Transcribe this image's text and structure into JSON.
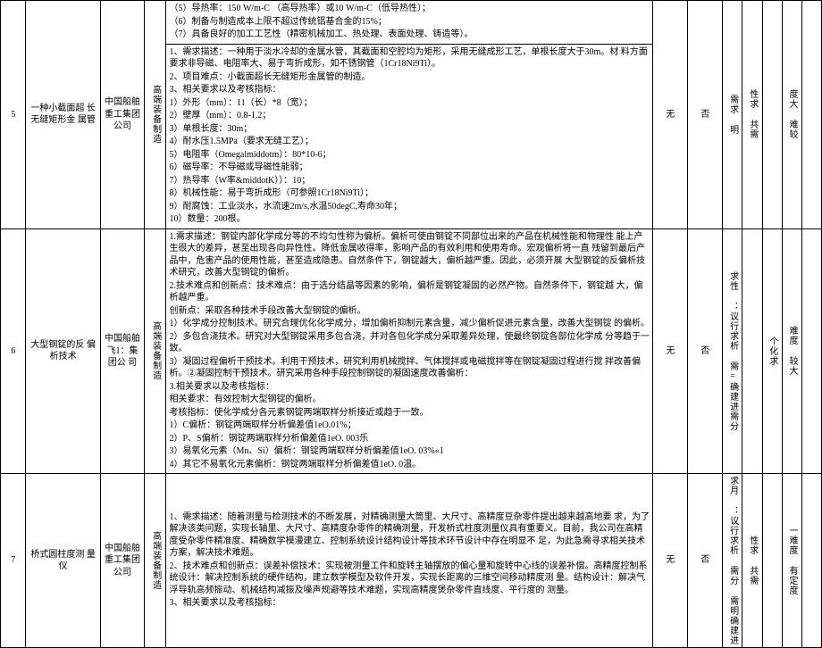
{
  "rows": [
    {
      "num": "5",
      "title": "一种小截面超 长无缝矩形金 属管",
      "org": "中国船舶重工集团公司",
      "cat": "高端装备制造",
      "flag1": "无",
      "flag2": "否",
      "n1": "需求 明",
      "n2": "性求 共需",
      "n3": "",
      "n4": "度大 难较",
      "n5": "",
      "detail_top": [
        "（5）导热率：150 W/m-C （高导热率）或10 W/m-C（低导热性）；",
        "（6）制备与制造成本上限不超过传统铝基合金的15%；",
        "（7）具备良好的加工工艺性（精密机械加工、热处理、表面处理、铸造等）。"
      ],
      "detail": [
        "1、需求描述：一种用于淡水冷却的金属水管，其截面和空腔均为矩形，采用无缝成形工艺，单根长度大于30m。材 料方面要求非导磁、电阻率大、易于弯折成形，如不锈钢管（1Cr18Ni9Ti）。",
        "2、项目难点：小截面超长无缝矩形金属管的制造。",
        "3、相关要求以及考核指标：",
        "1）外形（mm）：11（长）*8（宽）；",
        "2）壁厚（mm）：0.8-1.2；",
        "3）单根长度：30m；",
        "4）耐水压1.5MPa（要求无缝工艺）；",
        "5）电阻率（Omegalmiddotm）：80*10-6；",
        "6）磁导率：不导磁或导磁性能弱；",
        "7）热导率（W率&middotK））：10；",
        "8）机械性能：易于弯折成形（可参照1Cr18Ni9Ti）；",
        "9）耐腐蚀：工业淡水，水流速2m/s,水温50degC,寿命30年；",
        "10）数量：200根。"
      ]
    },
    {
      "num": "6",
      "title": "大型钢锭的反 偏析技术",
      "org": "中国船舶 飞1：集团公 司",
      "cat": "高端装备制造",
      "flag1": "无",
      "flag2": "否",
      "n1": "求性 ：议行求析 需=确建进需分",
      "n2": "",
      "n3": "个化求",
      "n4": "难度 较大",
      "n5": "",
      "detail": [
        "1.需求描述：钢锭内部化学成分等的不均匀性称为偏析。偏析可使由钢锭不同部位出来的产品在机械性能和物理性 能上产生很大的差异，甚至出现各向异性性。降低金属收得率，影响产品的有效利用和使用寿命。宏观偏析将一直 残留到最后产品中，危害产品的使用性能，甚至造成隐患。自然条件下，钢锭越大，偏析越严重。因此，必须开展 大型钢锭的反偏析技术研究，改善大型钢锭的偏析。",
        "2.技术难点和创新点：技术难点：由于选分结晶等因素的影响，偏析是钢锭凝固的必然产物。自然条件下，钢锭越 大，偏析越严重。",
        "创新点：采取各种技术手段改善大型钢锭的偏析。",
        "1）化学成分控制技术。研究合理优化化学成分，增加偏析抑制元素含量，减少偏析促进元素含量，改善大型钢锭 的偏析。",
        "2）多包合浇技术。研究对大型钢锭采用多包合浇，并对各包化学成分采取差异处理，使最终钢锭各部位化学成 分等趋于一致。",
        "3）凝固过程偏析干预技术。利用干预技术，研究利用机械搅拌、气体搅拌或电磁搅拌等在钢锭凝固过程进行搅 拌改善偏析。②凝固控制干预技术。研究采用各种手段控制钢锭的凝固速度改善偏析：",
        "3.相关要求以及考核指标：",
        "相关要求：有效控制大型钢锭的偏析。",
        "考核指标：使化学成分各元素钢锭两端取样分析接近或趋于一致。",
        "1）C偏析：钢锭两端取样分析偏差值1eO.01%；",
        "2）P、S偏析：钢锭两端取样分析偏差值1eO. 003乐",
        "3）易氧化元素（Mn、Si）偏析：钢锭两端取样分析偏差值1eO. 03%«1",
        "4）其它不易氧化元素偏析：钢锭两端取样分析偏差值1eO. 0温。"
      ]
    },
    {
      "num": "7",
      "title": "桥式圆柱度测 量仪",
      "org": "中国船舶重工集团公司",
      "cat": "高端装备制造",
      "flag1": "无",
      "flag2": "否",
      "n1": "求月 ：议行求析 需分 需明确建进",
      "n2": "性求 共需",
      "n3": "",
      "n4": "一难度 有定度",
      "n5": "",
      "detail": [
        "1、需求描述：随着测量与检测技术的不断发展，对精确测量大筒里、大尺寸、高精度豆杂零件提出越来越高地要 求，为了解决该类问题，实现长轴里、大尺寸、高精度杂零件的精确测量，开发桥式柱度测量仪具有重要义。目前，我公司在高精度受杂零件精准度、精确数学模漫建立、控制系统设计结构设计等技术环节设计中存在明显不 足，为此急需寻求相关技术方案，解决技术难题。",
        "2、技术难点和创新点：误差补偿技术：实现被测量工件和旋转主轴摆放的偏心量和旋转中心线的误差补偿。高精度控制系统设计：解决控制系统的硬件结构，建立数学模型及软件开发，实现长距离的三维空间移动精度测 量。结构设计：解决气浮导轨高频振动、机械结构减振及噪声规避等技术难题，实现高精度煲杂零件直线度、平行度的 测量。",
        "3、相关要求以及考核指标："
      ]
    }
  ]
}
